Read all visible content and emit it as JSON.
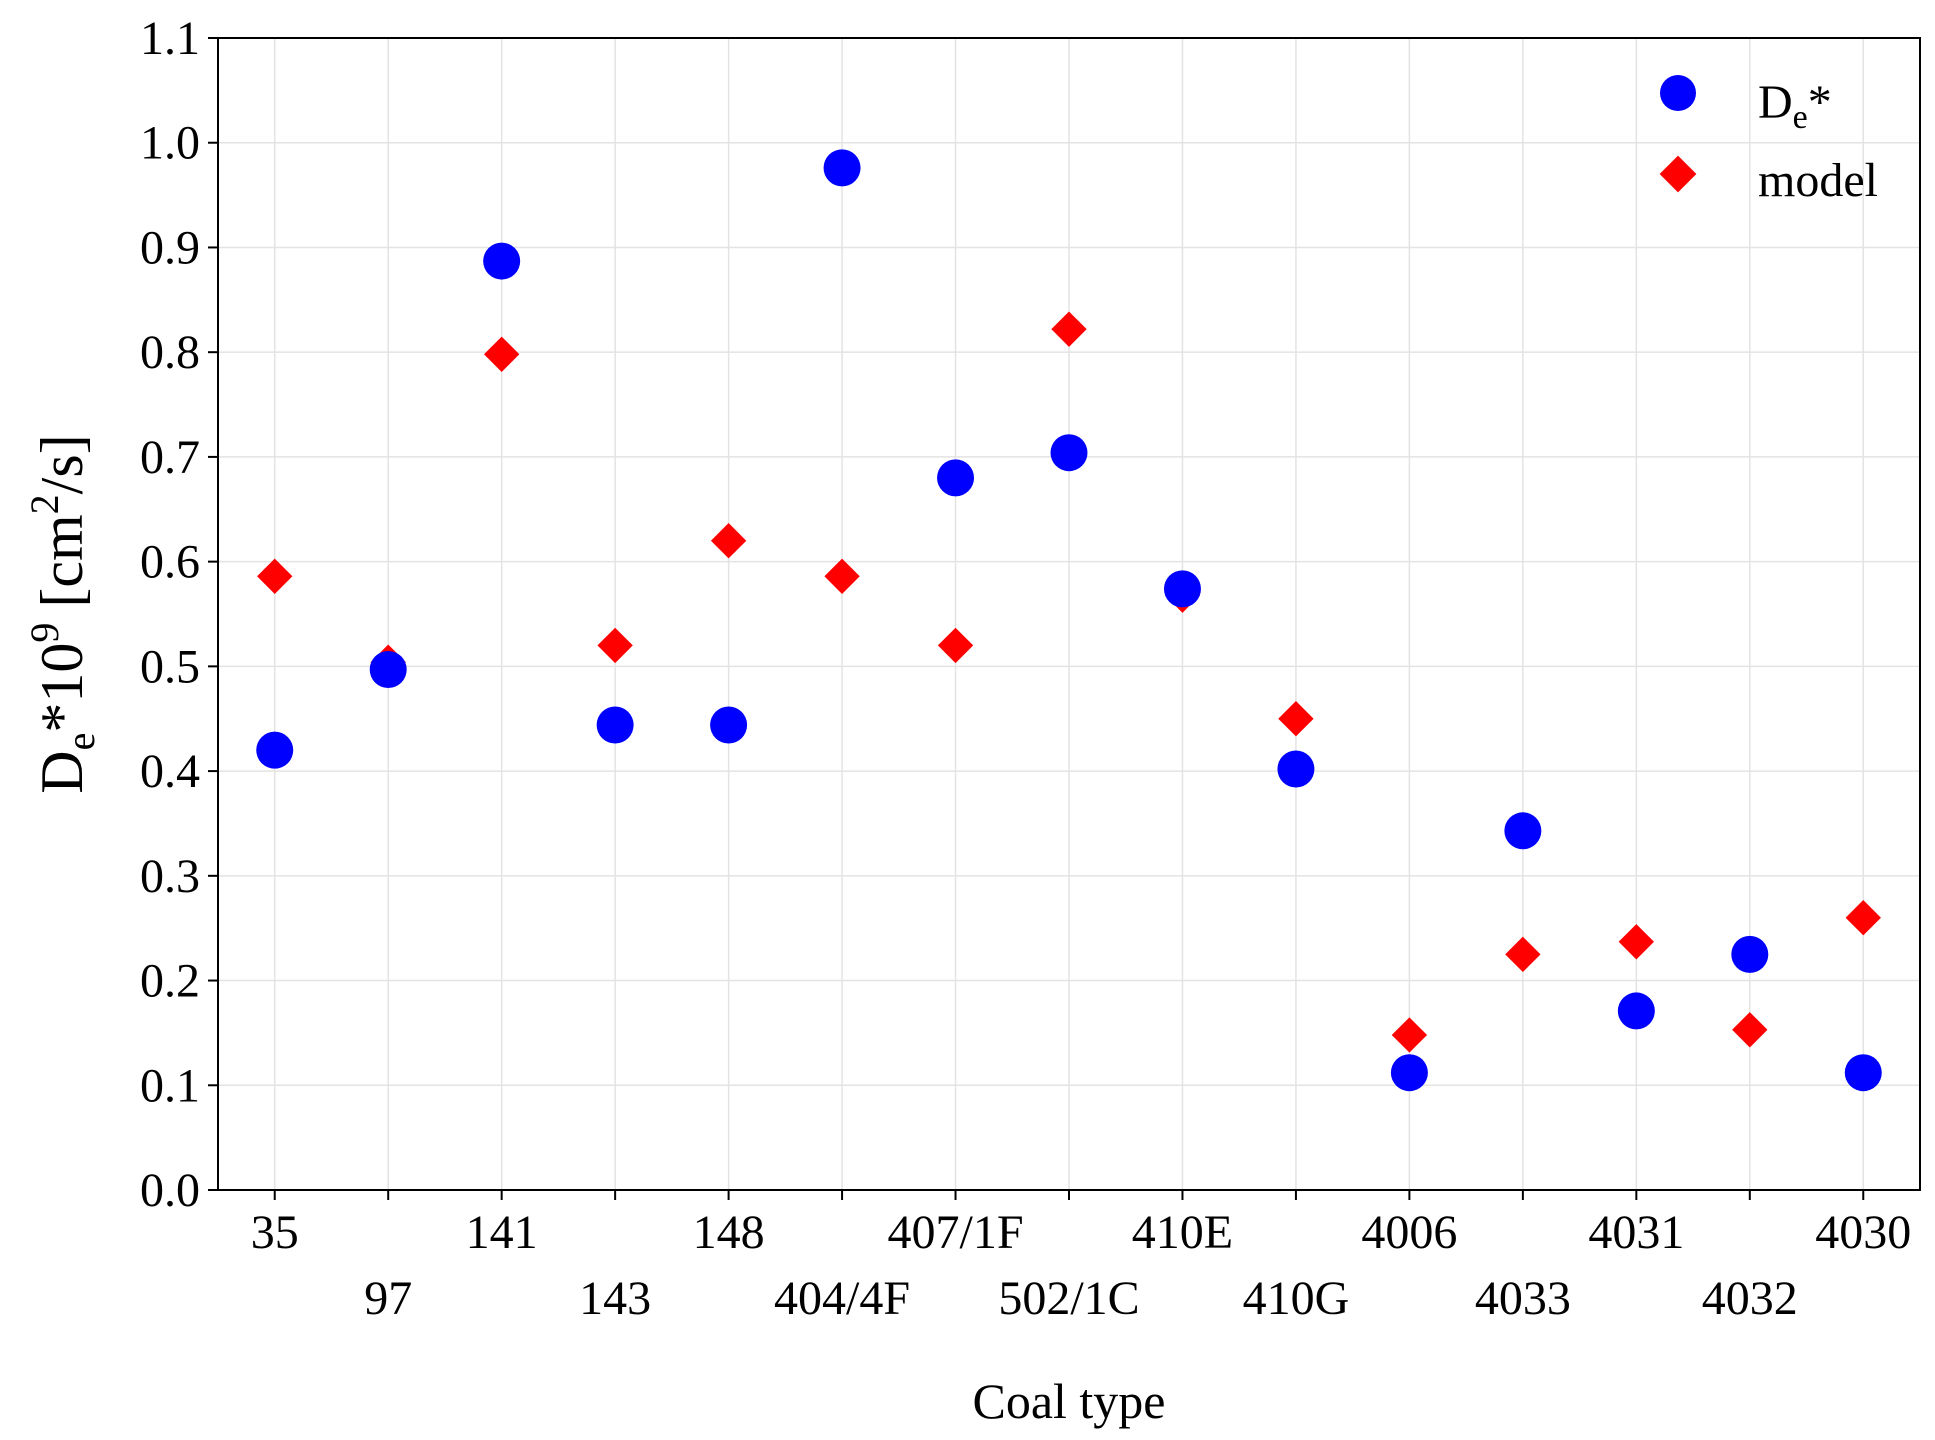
{
  "chart_data": {
    "type": "scatter",
    "categories": [
      "35",
      "97",
      "141",
      "143",
      "148",
      "404/4F",
      "407/1F",
      "502/1C",
      "410E",
      "410G",
      "4006",
      "4033",
      "4031",
      "4032",
      "4030"
    ],
    "series": [
      {
        "name": "D",
        "name_sub": "e",
        "name_suffix": "*",
        "marker": "circle",
        "color": "#0000ff",
        "values": [
          0.42,
          0.497,
          0.887,
          0.444,
          0.444,
          0.976,
          0.68,
          0.704,
          0.574,
          0.402,
          0.112,
          0.343,
          0.171,
          0.225,
          0.112
        ]
      },
      {
        "name": "model",
        "marker": "diamond",
        "color": "#ff0000",
        "values": [
          0.586,
          0.504,
          0.798,
          0.52,
          0.62,
          0.586,
          0.52,
          0.822,
          0.568,
          0.45,
          0.148,
          0.225,
          0.237,
          0.153,
          0.26
        ]
      }
    ],
    "ylim": [
      0,
      1.1
    ],
    "yticks": [
      "0.0",
      "0.1",
      "0.2",
      "0.3",
      "0.4",
      "0.5",
      "0.6",
      "0.7",
      "0.8",
      "0.9",
      "1.0",
      "1.1"
    ],
    "xlabel": "Coal type",
    "ylabel": {
      "main": "D",
      "sub": "e",
      "mid": "*10",
      "sup": "9",
      "unit_start": " [cm",
      "unit_sup": "2",
      "unit_end": "/s]"
    },
    "legend_position": "top-right",
    "grid": true,
    "title": ""
  }
}
